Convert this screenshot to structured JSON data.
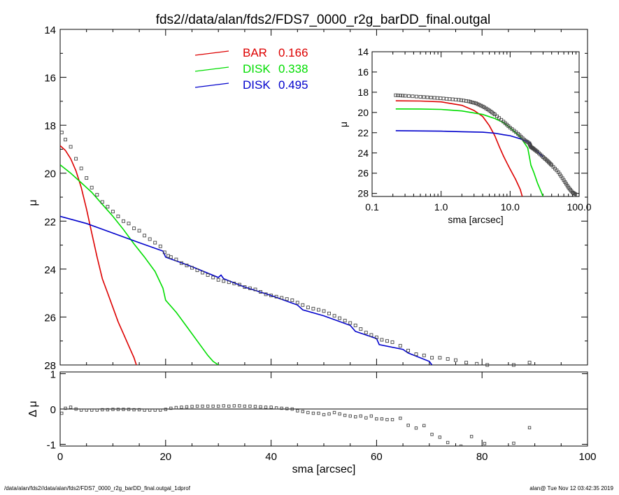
{
  "title": "fds2//data/alan/fds2/FDS7_0000_r2g_barDD_final.outgal",
  "footer": {
    "left": "/data/alan/fds2//data/alan/fds2/FDS7_0000_r2g_barDD_final.outgal_1dprof",
    "right": "alan@  Tue Nov 12 03:42:35 2019"
  },
  "colors": {
    "bar": "#dd0000",
    "disk1": "#00dd00",
    "disk2": "#0000cc",
    "data": "#555555"
  },
  "chart_data": [
    {
      "type": "scatter",
      "panel": "main",
      "xlabel": "",
      "ylabel": "μ",
      "xlim": [
        0,
        100
      ],
      "ylim": [
        28,
        14
      ],
      "y_inverted": true,
      "yticks": [
        14,
        16,
        18,
        20,
        22,
        24,
        26,
        28
      ],
      "legend": [
        {
          "name": "BAR",
          "value": "0.166",
          "color": "#dd0000"
        },
        {
          "name": "DISK",
          "value": "0.338",
          "color": "#00dd00"
        },
        {
          "name": "DISK",
          "value": "0.495",
          "color": "#0000cc"
        }
      ],
      "data_points": {
        "x": [
          0.3,
          1,
          2,
          3,
          4,
          5,
          6,
          7,
          8,
          9,
          10,
          11,
          12,
          13,
          14,
          15,
          16,
          17,
          18,
          19,
          19.8,
          20.5,
          21,
          22,
          23,
          24,
          25,
          26,
          27,
          28,
          29,
          30,
          31,
          32,
          33,
          34,
          35,
          36,
          37,
          38,
          39,
          40,
          41,
          42,
          43,
          44,
          45,
          46,
          47,
          48,
          49,
          50,
          51,
          52,
          53,
          54,
          55,
          56,
          57,
          58,
          59,
          60,
          61,
          62,
          63,
          64.5,
          66,
          67.5,
          69,
          70.5,
          72,
          73.5,
          75,
          77,
          79,
          81,
          83,
          86,
          89
        ],
        "y": [
          18.3,
          18.6,
          18.9,
          19.4,
          19.8,
          20.2,
          20.6,
          20.9,
          21.2,
          21.4,
          21.6,
          21.8,
          22.0,
          22.1,
          22.3,
          22.4,
          22.6,
          22.75,
          22.9,
          23.05,
          23.3,
          23.45,
          23.5,
          23.6,
          23.75,
          23.85,
          23.95,
          24.05,
          24.15,
          24.25,
          24.35,
          24.45,
          24.5,
          24.55,
          24.6,
          24.65,
          24.75,
          24.8,
          24.85,
          24.95,
          25.05,
          25.1,
          25.15,
          25.2,
          25.25,
          25.3,
          25.4,
          25.5,
          25.6,
          25.65,
          25.7,
          25.75,
          25.85,
          25.95,
          26.05,
          26.15,
          26.25,
          26.35,
          26.5,
          26.65,
          26.75,
          26.85,
          26.95,
          27.0,
          27.05,
          27.2,
          27.4,
          27.55,
          27.6,
          27.7,
          27.7,
          27.75,
          27.8,
          27.9,
          27.95,
          28.0,
          28.05,
          28.0,
          27.9
        ]
      },
      "series": [
        {
          "name": "BAR",
          "color": "#dd0000",
          "x": [
            0,
            1,
            2,
            3,
            4,
            5,
            6,
            7,
            8,
            9,
            10,
            11,
            12,
            13,
            14,
            14.6,
            15
          ],
          "y": [
            18.85,
            19.05,
            19.4,
            19.9,
            20.6,
            21.5,
            22.5,
            23.5,
            24.4,
            25.0,
            25.6,
            26.2,
            26.7,
            27.2,
            27.7,
            28.1,
            28.4
          ]
        },
        {
          "name": "DISK",
          "color": "#00dd00",
          "x": [
            0,
            2,
            4,
            6,
            8,
            10,
            12,
            14,
            16,
            18,
            19.5,
            20,
            22,
            24,
            26,
            28,
            29,
            30
          ],
          "y": [
            19.65,
            20.0,
            20.4,
            20.8,
            21.3,
            21.8,
            22.35,
            22.95,
            23.5,
            24.1,
            24.8,
            25.3,
            25.8,
            26.4,
            27.0,
            27.6,
            27.85,
            28.0
          ]
        },
        {
          "name": "DISK",
          "color": "#0000cc",
          "x": [
            0,
            5,
            10,
            15,
            19.5,
            20,
            25,
            30,
            30.5,
            31,
            35,
            40,
            45,
            46,
            50,
            55,
            56,
            60,
            60.5,
            65,
            66,
            70,
            70.5
          ],
          "y": [
            21.8,
            22.1,
            22.5,
            22.9,
            23.25,
            23.5,
            23.9,
            24.35,
            24.25,
            24.4,
            24.75,
            25.1,
            25.5,
            25.7,
            25.95,
            26.35,
            26.6,
            26.9,
            27.15,
            27.35,
            27.5,
            27.85,
            28.0
          ]
        }
      ]
    },
    {
      "type": "scatter",
      "panel": "residual",
      "xlabel": "sma [arcsec]",
      "ylabel": "Δ μ",
      "xlim": [
        0,
        100
      ],
      "ylim": [
        -1.05,
        1.05
      ],
      "xticks": [
        0,
        20,
        40,
        60,
        80,
        100
      ],
      "yticks": [
        -1,
        0,
        1
      ],
      "x": [
        0.3,
        1,
        2,
        3,
        4,
        5,
        6,
        7,
        8,
        9,
        10,
        11,
        12,
        13,
        14,
        15,
        16,
        17,
        18,
        19,
        20,
        21,
        22,
        23,
        24,
        25,
        26,
        27,
        28,
        29,
        30,
        31,
        32,
        33,
        34,
        35,
        36,
        37,
        38,
        39,
        40,
        41,
        42,
        43,
        44,
        45,
        46,
        47,
        48,
        49,
        50,
        51,
        52,
        53,
        54,
        55,
        56,
        57,
        58,
        59,
        60,
        61,
        62,
        63,
        64.5,
        66,
        67.5,
        69,
        70.5,
        72,
        73.5,
        76,
        78,
        80.5,
        82,
        86,
        89
      ],
      "y": [
        -0.12,
        0.02,
        0.05,
        0.0,
        -0.03,
        -0.03,
        -0.03,
        -0.03,
        -0.02,
        -0.02,
        -0.01,
        -0.01,
        -0.01,
        -0.01,
        -0.02,
        -0.02,
        -0.03,
        -0.03,
        -0.03,
        -0.03,
        -0.01,
        0.02,
        0.04,
        0.05,
        0.06,
        0.07,
        0.08,
        0.08,
        0.08,
        0.08,
        0.08,
        0.09,
        0.08,
        0.09,
        0.09,
        0.08,
        0.08,
        0.07,
        0.06,
        0.05,
        0.05,
        0.03,
        0.02,
        0.01,
        0.0,
        -0.05,
        -0.07,
        -0.1,
        -0.12,
        -0.12,
        -0.16,
        -0.14,
        -0.1,
        -0.14,
        -0.18,
        -0.2,
        -0.22,
        -0.2,
        -0.25,
        -0.2,
        -0.28,
        -0.28,
        -0.3,
        -0.3,
        -0.26,
        -0.46,
        -0.54,
        -0.47,
        -0.72,
        -0.8,
        -0.95,
        -1.05,
        -0.78,
        -0.98,
        -1.2,
        -0.97,
        -0.53
      ]
    },
    {
      "type": "scatter",
      "panel": "inset",
      "xlabel": "sma [arcsec]",
      "ylabel": "μ",
      "x_scale": "log",
      "xlim": [
        0.1,
        100
      ],
      "ylim": [
        28.3,
        14
      ],
      "y_inverted": true,
      "xtick_labels": [
        "0.1",
        "1.0",
        "10.0",
        "100.0"
      ],
      "yticks": [
        14,
        16,
        18,
        20,
        22,
        24,
        26,
        28
      ],
      "data_points": {
        "x": [
          0.22,
          0.3,
          0.5,
          0.8,
          1.2,
          1.8,
          2.5,
          3.2,
          4,
          5,
          6,
          8,
          10,
          13,
          16,
          19,
          20,
          22,
          25,
          30,
          35,
          40,
          50,
          60,
          70,
          80,
          90
        ],
        "y": [
          18.3,
          18.35,
          18.45,
          18.55,
          18.65,
          18.75,
          18.9,
          19.1,
          19.4,
          19.8,
          20.2,
          20.9,
          21.5,
          22.1,
          22.7,
          23.05,
          23.4,
          23.6,
          23.9,
          24.4,
          24.8,
          25.2,
          25.9,
          26.7,
          27.4,
          27.9,
          28.1
        ]
      },
      "series": [
        {
          "name": "BAR",
          "color": "#dd0000",
          "x": [
            0.22,
            0.5,
            1,
            2,
            3,
            4,
            5,
            6,
            7,
            8,
            9,
            10,
            12,
            14,
            15
          ],
          "y": [
            18.85,
            18.87,
            18.95,
            19.3,
            19.8,
            20.4,
            21.3,
            22.3,
            23.4,
            24.3,
            25.0,
            25.6,
            26.6,
            27.6,
            28.3
          ]
        },
        {
          "name": "DISK",
          "color": "#00dd00",
          "x": [
            0.22,
            0.5,
            1,
            2,
            4,
            6,
            8,
            10,
            14,
            18,
            19.5,
            20,
            22,
            25,
            28,
            30
          ],
          "y": [
            19.65,
            19.66,
            19.7,
            19.85,
            20.2,
            20.6,
            21.0,
            21.5,
            22.4,
            23.5,
            24.8,
            25.2,
            25.9,
            27.0,
            27.8,
            28.3
          ]
        },
        {
          "name": "DISK",
          "color": "#0000cc",
          "x": [
            0.22,
            1,
            2,
            4,
            6,
            8,
            10,
            14,
            19.5,
            20,
            25,
            30
          ],
          "y": [
            21.8,
            21.85,
            21.9,
            21.95,
            22.05,
            22.2,
            22.3,
            22.6,
            23.0,
            23.4,
            23.9,
            24.35
          ]
        }
      ]
    }
  ]
}
